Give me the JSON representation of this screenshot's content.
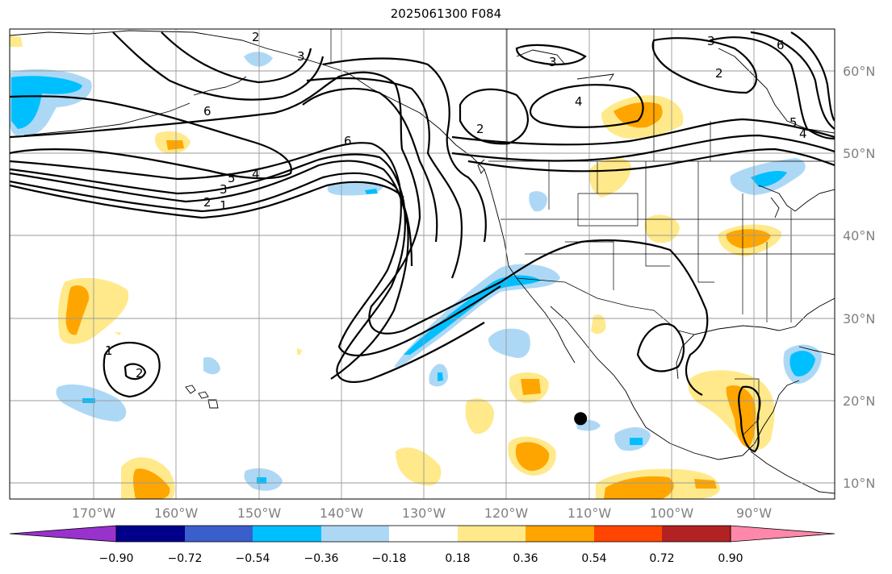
{
  "title": "2025061300 F084",
  "map": {
    "lon_range": [
      -180,
      -80
    ],
    "lat_range": [
      8,
      65
    ],
    "lon_ticks": [
      {
        "lon": -170,
        "label": "170°W"
      },
      {
        "lon": -160,
        "label": "160°W"
      },
      {
        "lon": -150,
        "label": "150°W"
      },
      {
        "lon": -140,
        "label": "140°W"
      },
      {
        "lon": -130,
        "label": "130°W"
      },
      {
        "lon": -120,
        "label": "120°W"
      },
      {
        "lon": -110,
        "label": "110°W"
      },
      {
        "lon": -100,
        "label": "100°W"
      },
      {
        "lon": -90,
        "label": "90°W"
      }
    ],
    "lat_ticks": [
      {
        "lat": 60,
        "label": "60°N"
      },
      {
        "lat": 50,
        "label": "50°N"
      },
      {
        "lat": 40,
        "label": "40°N"
      },
      {
        "lat": 30,
        "label": "30°N"
      },
      {
        "lat": 20,
        "label": "20°N"
      },
      {
        "lat": 10,
        "label": "10°N"
      }
    ],
    "contour_labels": [
      "1",
      "2",
      "3",
      "4",
      "5",
      "6"
    ],
    "storm_marker": {
      "lon": -110.8,
      "lat": 17.8
    }
  },
  "colorbar": {
    "colors": [
      "#9932cc",
      "#00008b",
      "#3a5fcd",
      "#00bfff",
      "#add8f5",
      "#ffffff",
      "#ffe98a",
      "#ffa500",
      "#ff4500",
      "#b22222",
      "#ff88aa"
    ],
    "boundaries": [
      "−0.90",
      "−0.72",
      "−0.54",
      "−0.36",
      "−0.18",
      "0.18",
      "0.36",
      "0.54",
      "0.72",
      "0.90"
    ]
  }
}
